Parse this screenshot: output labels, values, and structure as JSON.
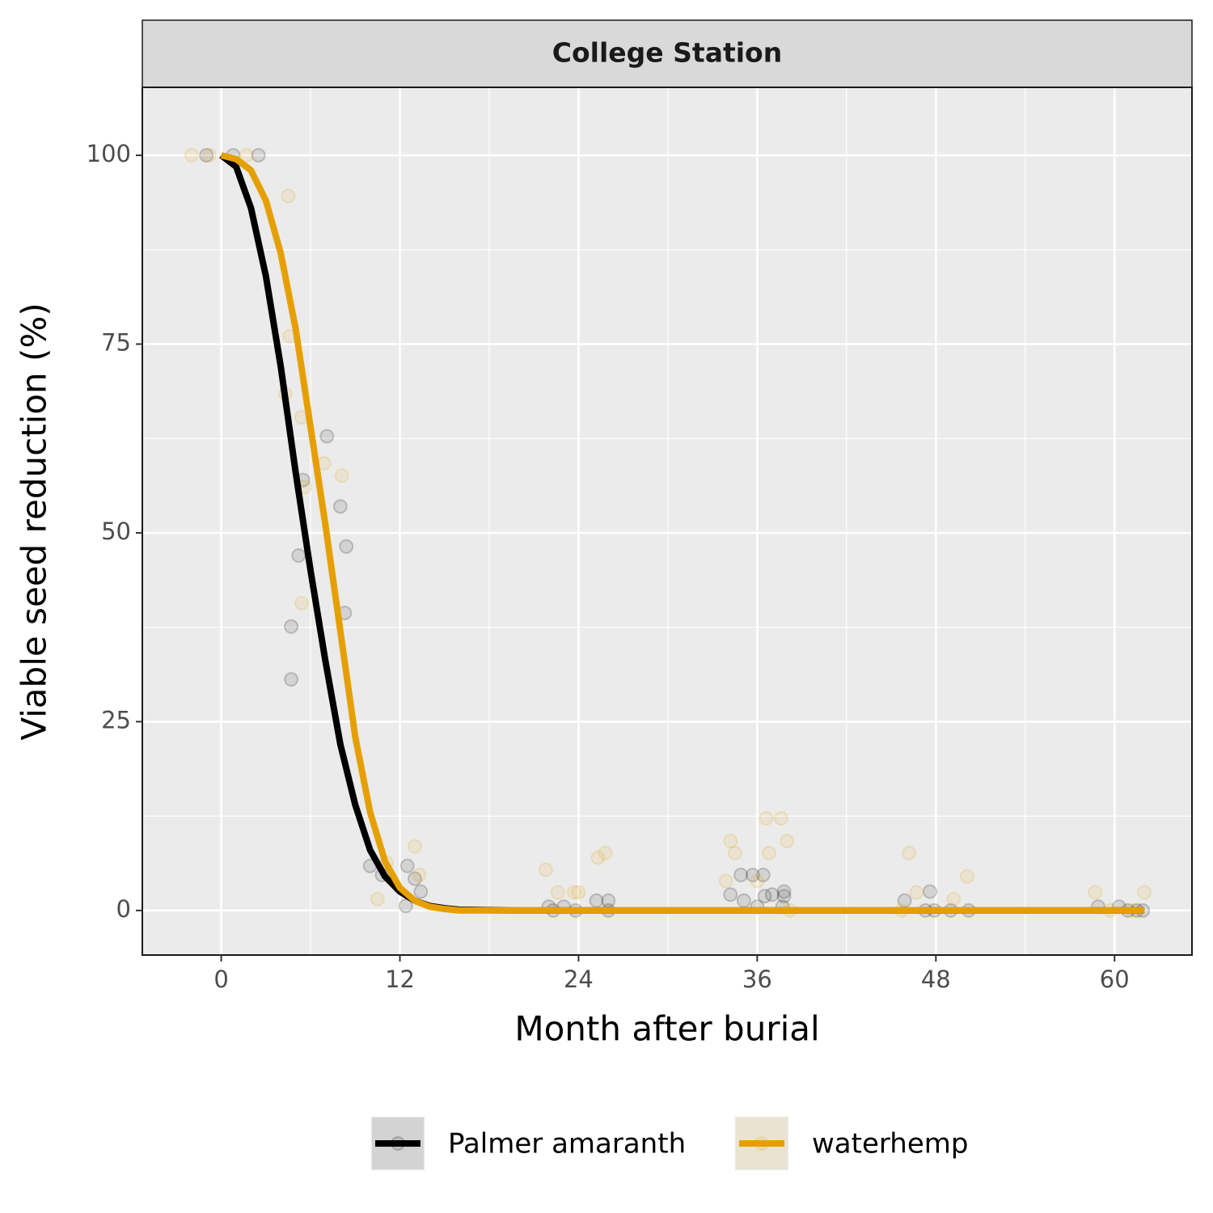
{
  "chart_data": {
    "type": "line",
    "facet_title": "College Station",
    "xlabel": "Month after burial",
    "ylabel": "Viable seed reduction (%)",
    "xlim": [
      -5.3,
      65.2
    ],
    "ylim": [
      -5.9,
      109
    ],
    "xticks": [
      0,
      12,
      24,
      36,
      48,
      60
    ],
    "yticks": [
      0,
      25,
      50,
      75,
      100
    ],
    "grid": true,
    "legend": "bottom",
    "series": [
      {
        "name": "Palmer amaranth",
        "color": "#000000",
        "x": [
          0,
          1,
          2,
          3,
          4,
          5,
          6,
          7,
          8,
          9,
          10,
          11,
          12,
          13,
          14,
          15,
          16,
          20,
          62
        ],
        "values": [
          100,
          98.5,
          93,
          84,
          72,
          58,
          45,
          33,
          22,
          14,
          8,
          4.5,
          2.5,
          1.3,
          0.6,
          0.3,
          0.1,
          0,
          0
        ],
        "points_x": [
          -1,
          0.8,
          2.5,
          7.1,
          8,
          8.4,
          8.3,
          5.2,
          5.5,
          4.7,
          4.7,
          10,
          10.8,
          12.5,
          13,
          13.4,
          12.4,
          22,
          22.3,
          23,
          23.8,
          25.2,
          26,
          26,
          34.2,
          34.9,
          35.1,
          35.7,
          36,
          36.4,
          36.5,
          37,
          37.8,
          37.8,
          37.7,
          45.9,
          47.6,
          47.3,
          47.9,
          49,
          50.2,
          58.9,
          60.3,
          60.9,
          61.5,
          61.9
        ],
        "points_y": [
          100,
          100,
          100,
          62.8,
          53.5,
          48.2,
          39.4,
          47,
          57,
          37.6,
          30.6,
          5.9,
          4.7,
          5.9,
          4.2,
          2.5,
          0.6,
          0.5,
          0,
          0.5,
          0,
          1.3,
          1.3,
          0,
          2.1,
          4.7,
          1.3,
          4.7,
          0.5,
          4.7,
          1.9,
          2.1,
          2.5,
          1.9,
          0.5,
          1.3,
          2.5,
          0,
          0,
          0,
          0,
          0.5,
          0.5,
          0,
          0,
          0
        ]
      },
      {
        "name": "waterhemp",
        "color": "#e69f00",
        "x": [
          0,
          1,
          2,
          3,
          4,
          5,
          6,
          7,
          8,
          9,
          10,
          11,
          12,
          13,
          14,
          15,
          16,
          20,
          62
        ],
        "values": [
          100,
          99.5,
          98,
          94,
          87,
          77,
          64,
          51,
          37,
          23,
          13,
          6.5,
          3,
          1.3,
          0.5,
          0.2,
          0,
          0,
          0
        ],
        "points_x": [
          -2,
          -0.8,
          1.7,
          4.5,
          4.3,
          4.6,
          5.4,
          6.9,
          8.1,
          5.6,
          5.4,
          10.5,
          11.1,
          13,
          13.3,
          21.8,
          22.6,
          23.7,
          24,
          25.3,
          25.8,
          34.2,
          34.5,
          33.9,
          36.6,
          37.6,
          36.8,
          38,
          36,
          38.2,
          46.2,
          46.7,
          49.2,
          50.1,
          45.7,
          58.7,
          59.7,
          62,
          61.2
        ],
        "points_y": [
          100,
          100,
          100,
          94.6,
          68.4,
          76,
          65.3,
          59.2,
          57.6,
          56.1,
          40.7,
          1.5,
          6.3,
          8.5,
          4.7,
          5.4,
          2.4,
          2.4,
          2.4,
          7,
          7.6,
          9.2,
          7.6,
          3.9,
          12.2,
          12.2,
          7.6,
          9.2,
          3.9,
          0,
          7.6,
          2.4,
          1.5,
          4.5,
          0,
          2.4,
          0,
          2.4,
          0
        ]
      }
    ]
  }
}
